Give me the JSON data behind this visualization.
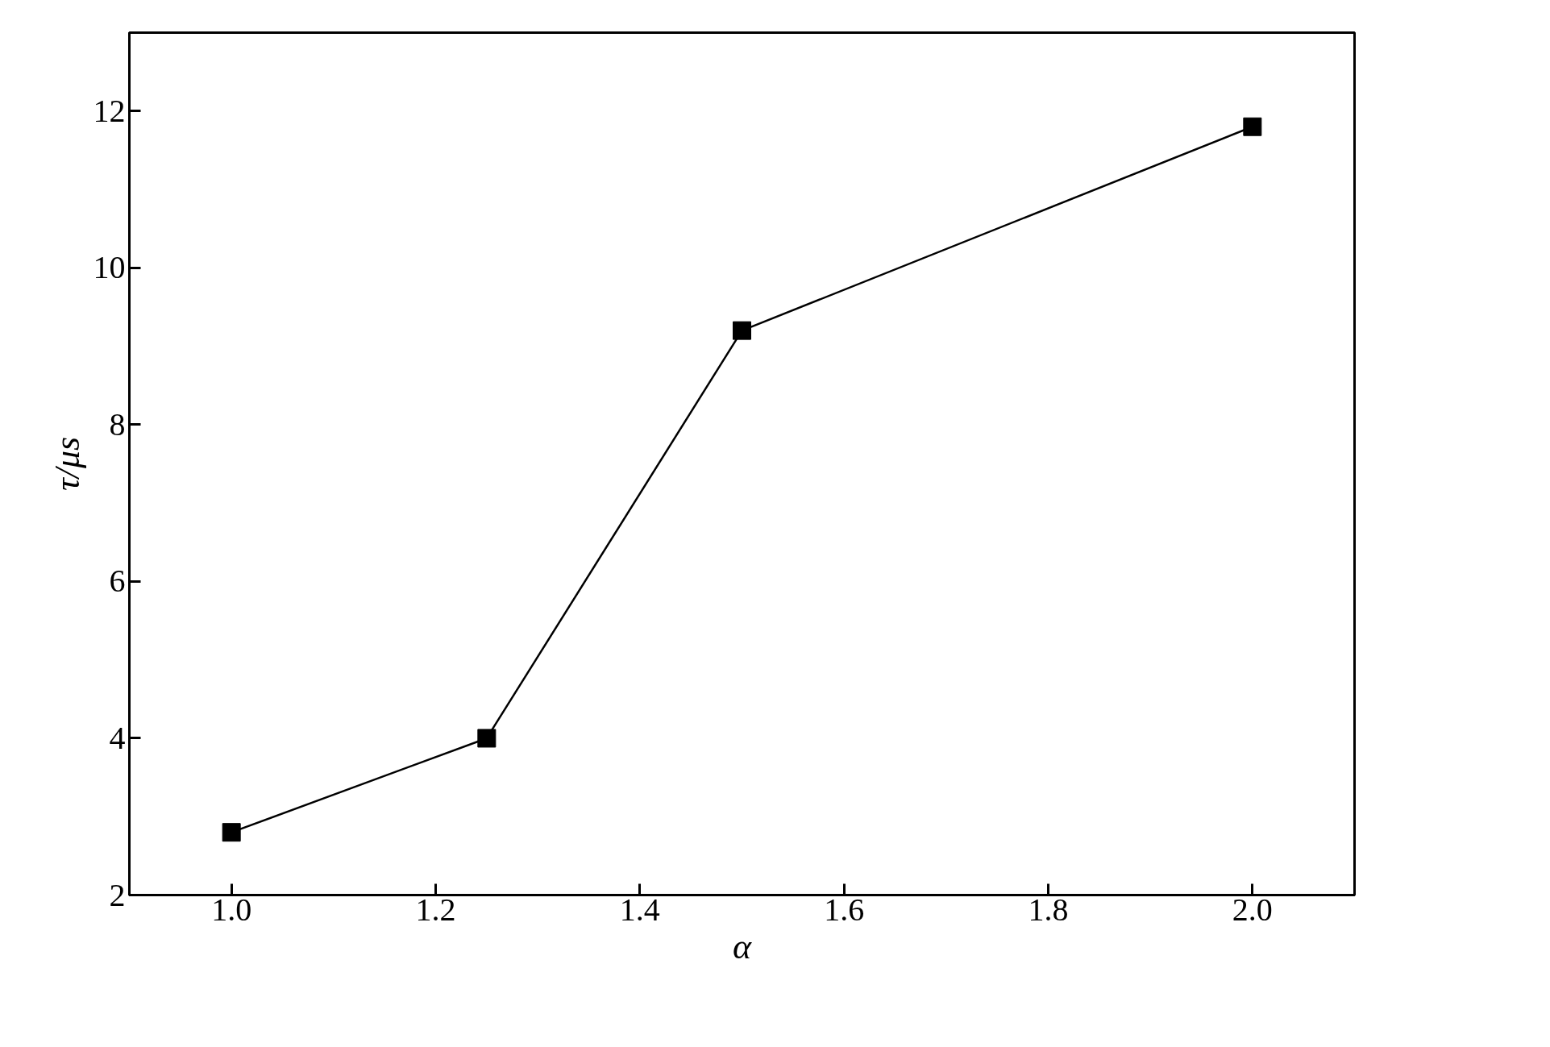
{
  "chart_data": {
    "type": "line",
    "xlabel": "α",
    "ylabel": "τ/μs",
    "x": [
      1.0,
      1.25,
      1.5,
      2.0
    ],
    "series": [
      {
        "color": "#000000",
        "values": [
          2.8,
          4.0,
          9.2,
          11.8
        ]
      }
    ],
    "xlim": [
      0.9,
      2.1
    ],
    "ylim": [
      2,
      13
    ],
    "xticks": [
      {
        "value": 1.0,
        "label": "1.0"
      },
      1.2,
      1.4,
      1.6,
      1.8,
      {
        "value": 2.0,
        "label": "2.0"
      }
    ],
    "yticks": [
      2,
      4,
      6,
      8,
      10,
      12
    ],
    "marker": "square",
    "line_style": "solid",
    "grid": false
  }
}
